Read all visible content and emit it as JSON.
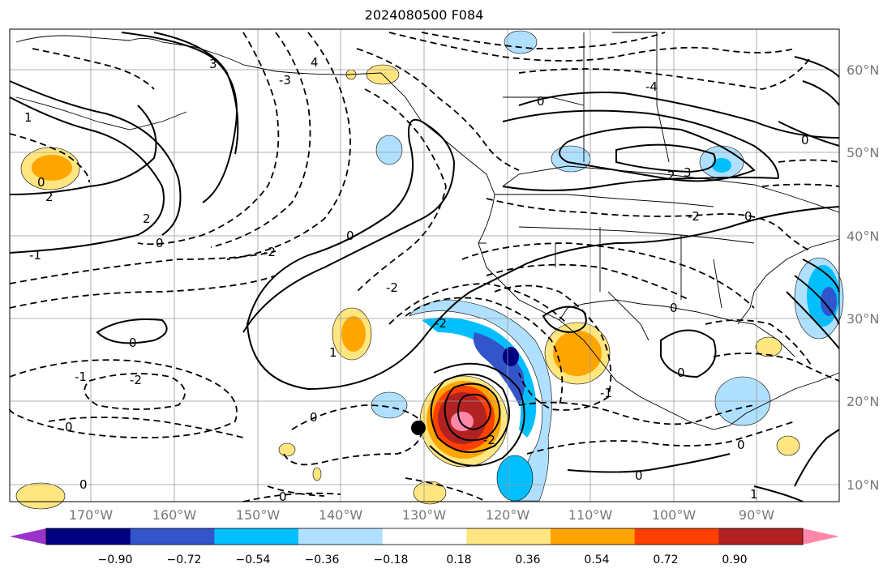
{
  "title": "2024080500 F084",
  "lon_ticks": [
    "170°W",
    "160°W",
    "150°W",
    "140°W",
    "130°W",
    "120°W",
    "110°W",
    "100°W",
    "90°W"
  ],
  "lat_ticks": [
    "60°N",
    "50°N",
    "40°N",
    "30°N",
    "20°N",
    "10°N"
  ],
  "colorbar": {
    "labels": [
      "−0.90",
      "−0.72",
      "−0.54",
      "−0.36",
      "−0.18",
      "0.18",
      "0.36",
      "0.54",
      "0.72",
      "0.90"
    ],
    "colors": [
      "#9933cc",
      "#000080",
      "#3355cc",
      "#00bfff",
      "#b0e0ff",
      "#ffffff",
      "#ffe680",
      "#ffa500",
      "#ff4000",
      "#b22222",
      "#ff88aa"
    ]
  },
  "contour_labels": [
    "0",
    "-2",
    "2",
    "-1",
    "1",
    "3",
    "-3",
    "4",
    "-4"
  ],
  "colors": {
    "pos_strong": "#b22222",
    "pos_mid": "#ffa500",
    "pos_weak": "#ffe680",
    "neg_weak": "#b0e0ff",
    "neg_mid": "#00bfff",
    "neg_strong": "#000080"
  }
}
